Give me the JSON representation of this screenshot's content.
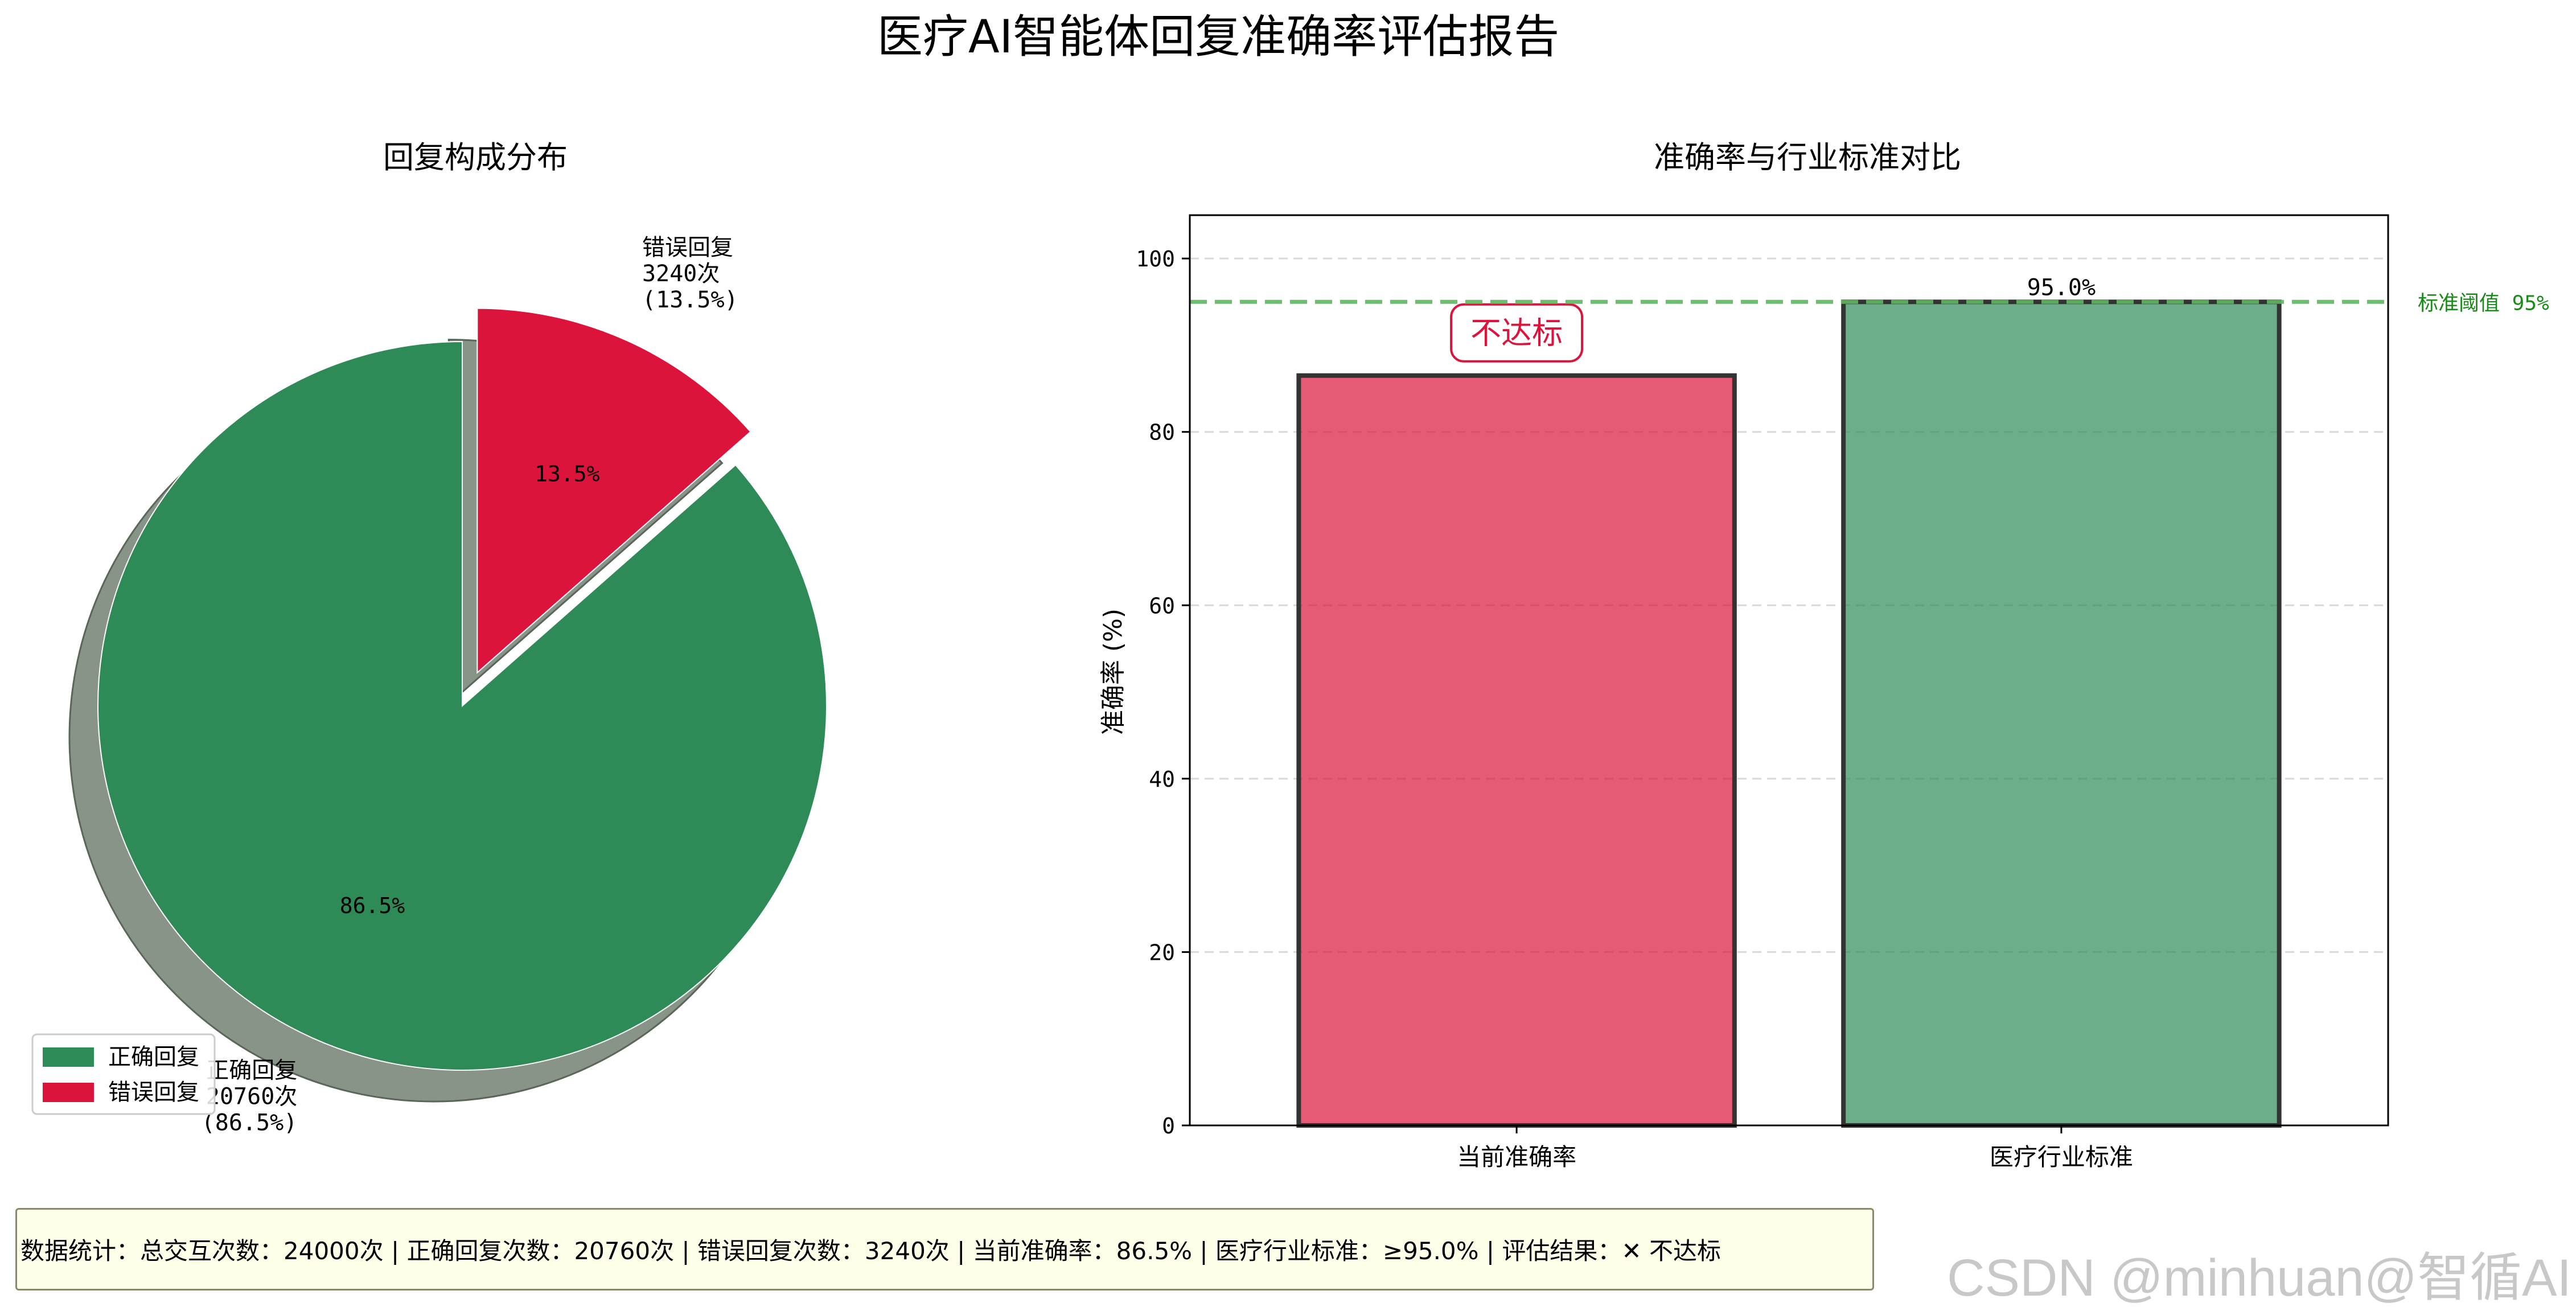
{
  "figure": {
    "title": "医疗AI智能体回复准确率评估报告",
    "summary_text": "数据统计：总交互次数：24000次 | 正确回复次数：20760次 | 错误回复次数：3240次 | 当前准确率：86.5% | 医疗行业标准：≥95.0% | 评估结果：✕ 不达标",
    "watermark": "CSDN @minhuan@智循AI"
  },
  "chart_data": [
    {
      "type": "pie",
      "title": "回复构成分布",
      "slices": [
        {
          "name": "正确回复",
          "value": 20760,
          "percent": 86.5,
          "label": "正确回复\n20760次\n(86.5%)",
          "pct_label": "86.5%",
          "color": "#2e8b57",
          "explode": false
        },
        {
          "name": "错误回复",
          "value": 3240,
          "percent": 13.5,
          "label": "错误回复\n3240次\n(13.5%)",
          "pct_label": "13.5%",
          "color": "#dc143c",
          "explode": true
        }
      ],
      "shadow": true,
      "legend": {
        "placement": "lower-left",
        "entries": [
          "正确回复",
          "错误回复"
        ]
      }
    },
    {
      "type": "bar",
      "title": "准确率与行业标准对比",
      "categories": [
        "当前准确率",
        "医疗行业标准"
      ],
      "values": [
        86.5,
        95.0
      ],
      "colors": [
        "#dc143c",
        "#2e8b57"
      ],
      "value_labels": [
        "",
        "95.0%"
      ],
      "annotation": {
        "text": "不达标",
        "bar": 0,
        "color": "#dc143c"
      },
      "ylabel": "准确率 (%)",
      "ylim": [
        0,
        105
      ],
      "yticks": [
        0,
        20,
        40,
        60,
        80,
        100
      ],
      "threshold": {
        "value": 95,
        "label": "标准阈值 95%",
        "color": "#5cb85c"
      },
      "grid": "y-dashed"
    }
  ]
}
